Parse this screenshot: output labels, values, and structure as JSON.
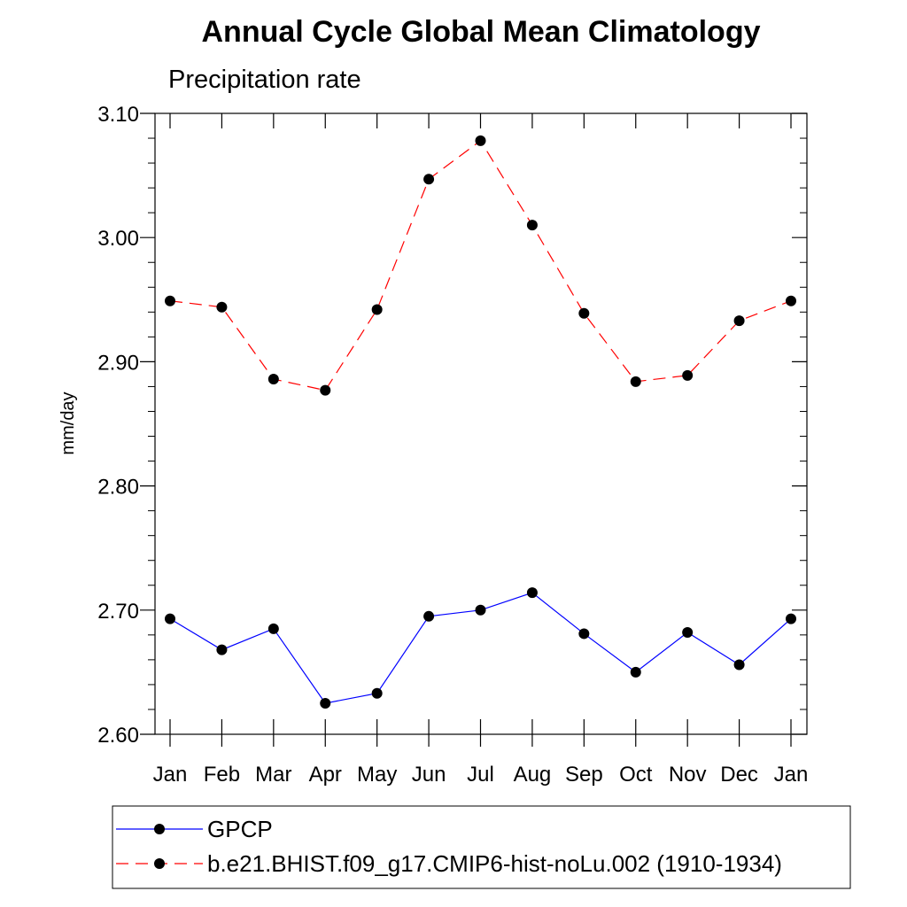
{
  "chart_data": {
    "type": "line",
    "title": "Annual Cycle Global Mean Climatology",
    "subtitle": "Precipitation rate",
    "xlabel": "",
    "ylabel": "mm/day",
    "categories": [
      "Jan",
      "Feb",
      "Mar",
      "Apr",
      "May",
      "Jun",
      "Jul",
      "Aug",
      "Sep",
      "Oct",
      "Nov",
      "Dec",
      "Jan"
    ],
    "ylim": [
      2.6,
      3.1
    ],
    "yticks": [
      "2.60",
      "2.70",
      "2.80",
      "2.90",
      "3.00",
      "3.10"
    ],
    "series": [
      {
        "name": "GPCP",
        "color": "#0000ff",
        "dash": "solid",
        "values": [
          2.693,
          2.668,
          2.685,
          2.625,
          2.633,
          2.695,
          2.7,
          2.714,
          2.681,
          2.65,
          2.682,
          2.656,
          2.693
        ]
      },
      {
        "name": "b.e21.BHIST.f09_g17.CMIP6-hist-noLu.002 (1910-1934)",
        "color": "#ff0000",
        "dash": "dashed",
        "values": [
          2.949,
          2.944,
          2.886,
          2.877,
          2.942,
          3.047,
          3.078,
          3.01,
          2.939,
          2.884,
          2.889,
          2.933,
          2.949
        ]
      }
    ],
    "legend_position": "bottom"
  }
}
